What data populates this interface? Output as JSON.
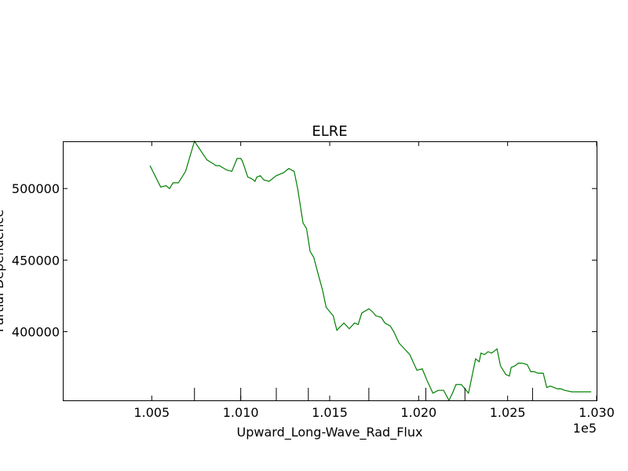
{
  "chart_data": {
    "type": "line",
    "title": "ELRE",
    "xlabel": "Upward_Long-Wave_Rad_Flux",
    "ylabel": "Partial Dependence",
    "x_offset_label": "1e5",
    "xlim": [
      100000,
      103000
    ],
    "ylim": [
      352000,
      533000
    ],
    "x_ticks": [
      100500,
      101000,
      101500,
      102000,
      102500,
      103000
    ],
    "x_tick_labels": [
      "1.005",
      "1.010",
      "1.015",
      "1.020",
      "1.025",
      "1.030"
    ],
    "y_ticks": [
      400000,
      450000,
      500000
    ],
    "y_tick_labels": [
      "400000",
      "450000",
      "500000"
    ],
    "rug": [
      100740,
      101000,
      101200,
      101380,
      101720,
      102040,
      102260,
      102640
    ],
    "grid": false,
    "colors": {
      "line": "#008000"
    },
    "series": [
      {
        "x": [
          100490,
          100510,
          100550,
          100580,
          100600,
          100620,
          100650,
          100690,
          100740,
          100810,
          100850,
          100860,
          100880,
          100920,
          100950,
          100980,
          101000,
          101010,
          101040,
          101060,
          101080,
          101090,
          101110,
          101130,
          101160,
          101200,
          101220,
          101240,
          101270,
          101300,
          101320,
          101350,
          101370,
          101390,
          101410,
          101440,
          101460,
          101480,
          101520,
          101540,
          101580,
          101610,
          101640,
          101660,
          101680,
          101720,
          101740,
          101760,
          101790,
          101810,
          101840,
          101860,
          101890,
          101920,
          101950,
          101990,
          102020,
          102050,
          102080,
          102110,
          102140,
          102170,
          102190,
          102210,
          102240,
          102260,
          102280,
          102310,
          102320,
          102340,
          102350,
          102370,
          102390,
          102410,
          102440,
          102460,
          102490,
          102510,
          102520,
          102540,
          102560,
          102580,
          102610,
          102630,
          102650,
          102670,
          102700,
          102720,
          102740,
          102780,
          102800,
          102820,
          102860,
          102890,
          102910,
          102940,
          102970
        ],
        "y": [
          516000,
          511000,
          501000,
          502000,
          500000,
          504000,
          504000,
          512000,
          533000,
          520000,
          517000,
          516000,
          516000,
          513000,
          512000,
          521000,
          521000,
          519000,
          508000,
          507000,
          505000,
          508000,
          509000,
          506000,
          505000,
          509000,
          510000,
          511000,
          514000,
          512000,
          500000,
          476000,
          472000,
          456000,
          452000,
          438000,
          429000,
          417000,
          411000,
          401000,
          406000,
          402000,
          406000,
          405000,
          413000,
          416000,
          414000,
          411000,
          410000,
          406000,
          404000,
          400000,
          392000,
          388000,
          384000,
          373000,
          374000,
          365000,
          357000,
          359000,
          359000,
          352000,
          357000,
          363000,
          363000,
          360000,
          357000,
          375000,
          381000,
          379000,
          385000,
          384000,
          386000,
          385000,
          388000,
          376000,
          370000,
          369000,
          375000,
          376000,
          378000,
          378000,
          377000,
          372000,
          372000,
          371000,
          371000,
          361000,
          362000,
          360000,
          360000,
          359000,
          358000,
          358000,
          358000,
          358000,
          358000
        ]
      }
    ]
  }
}
